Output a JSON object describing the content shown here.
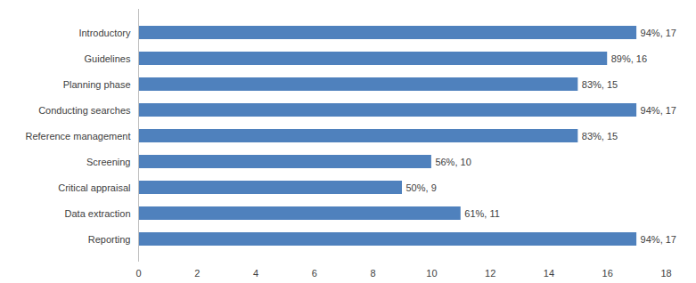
{
  "chart_data": {
    "type": "bar",
    "orientation": "horizontal",
    "categories": [
      "Introductory",
      "Guidelines",
      "Planning phase",
      "Conducting searches",
      "Reference management",
      "Screening",
      "Critical appraisal",
      "Data extraction",
      "Reporting"
    ],
    "values": [
      17,
      16,
      15,
      17,
      15,
      10,
      9,
      11,
      17
    ],
    "value_labels": [
      "94%, 17",
      "89%, 16",
      "83%, 15",
      "94%, 17",
      "83%, 15",
      "56%, 10",
      "50%, 9",
      "61%, 11",
      "94%, 17"
    ],
    "data_labels": true,
    "color": "#4f81bd",
    "xlim": [
      0,
      18
    ],
    "xticks": [
      0,
      2,
      4,
      6,
      8,
      10,
      12,
      14,
      16,
      18
    ],
    "grid": false
  }
}
